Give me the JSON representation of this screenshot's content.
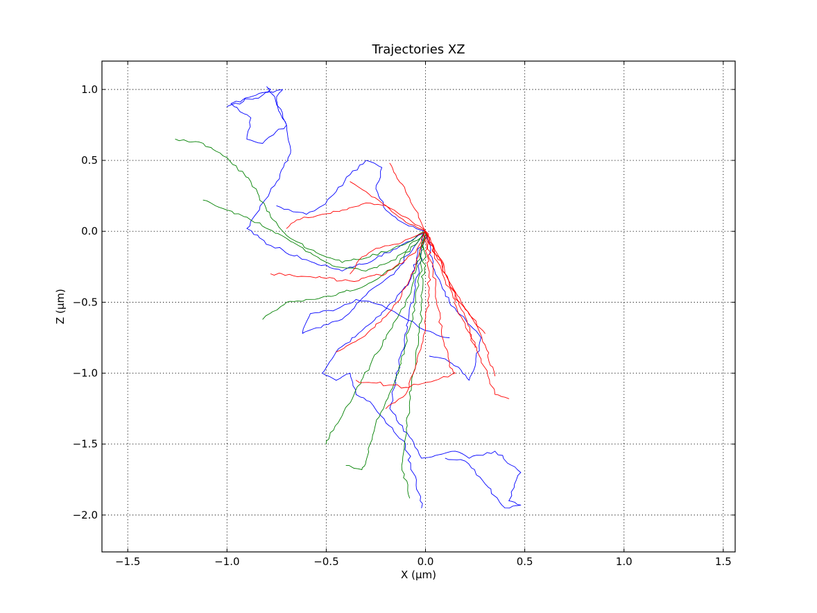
{
  "chart_data": {
    "type": "line",
    "title": "Trajectories XZ",
    "xlabel": "X (μm)",
    "ylabel": "Z (μm)",
    "xlim": [
      -1.63,
      1.56
    ],
    "ylim": [
      -2.26,
      1.2
    ],
    "xticks": [
      -1.5,
      -1.0,
      -0.5,
      0.0,
      0.5,
      1.0,
      1.5
    ],
    "xtick_labels": [
      "−1.5",
      "−1.0",
      "−0.5",
      "0.0",
      "0.5",
      "1.0",
      "1.5"
    ],
    "yticks": [
      1.0,
      0.5,
      0.0,
      -0.5,
      -1.0,
      -1.5,
      -2.0
    ],
    "ytick_labels": [
      "1.0",
      "0.5",
      "0.0",
      "−0.5",
      "−1.0",
      "−1.5",
      "−2.0"
    ],
    "grid": true,
    "colors": {
      "blue": "#0000ff",
      "green": "#008000",
      "red": "#ff0000"
    },
    "series": [
      {
        "color": "#0000ff",
        "x": [
          0.0,
          -0.18,
          -0.42,
          -0.6,
          -0.78,
          -0.9,
          -0.82,
          -0.75,
          -0.68,
          -0.7,
          -0.76,
          -0.8,
          -0.78,
          -0.98,
          -0.88,
          -0.9,
          -0.82,
          -0.7,
          -0.74,
          -0.75,
          -0.72,
          -1.0
        ],
        "y": [
          0.0,
          -0.15,
          -0.28,
          -0.2,
          -0.1,
          0.02,
          0.2,
          0.35,
          0.55,
          0.75,
          0.95,
          1.02,
          1.0,
          0.9,
          0.8,
          0.65,
          0.62,
          0.75,
          0.85,
          0.95,
          1.0,
          0.88
        ]
      },
      {
        "color": "#0000ff",
        "x": [
          0.0,
          -0.05,
          -0.12,
          -0.18,
          -0.08,
          -0.02,
          0.05,
          0.15,
          0.22,
          0.35,
          0.48,
          0.42,
          0.48,
          0.4,
          0.3,
          0.2,
          0.1
        ],
        "y": [
          0.0,
          -0.4,
          -0.85,
          -1.25,
          -1.45,
          -1.6,
          -1.58,
          -1.55,
          -1.6,
          -1.55,
          -1.7,
          -1.9,
          -1.93,
          -1.95,
          -1.78,
          -1.62,
          -1.6
        ]
      },
      {
        "color": "#0000ff",
        "x": [
          0.0,
          -0.08,
          -0.2,
          -0.32,
          -0.45,
          -0.52,
          -0.45,
          -0.38,
          -0.35,
          -0.28,
          -0.2,
          -0.1,
          -0.02
        ],
        "y": [
          0.0,
          -0.35,
          -0.55,
          -0.7,
          -0.85,
          -1.0,
          -1.05,
          -1.0,
          -1.15,
          -1.2,
          -1.35,
          -1.5,
          -1.95
        ]
      },
      {
        "color": "#0000ff",
        "x": [
          0.0,
          0.05,
          0.12,
          0.2,
          0.28,
          0.25,
          0.22,
          0.18,
          0.1,
          0.02
        ],
        "y": [
          0.0,
          -0.3,
          -0.5,
          -0.62,
          -0.75,
          -0.95,
          -1.05,
          -0.98,
          -0.9,
          -0.88
        ]
      },
      {
        "color": "#0000ff",
        "x": [
          0.0,
          -0.15,
          -0.3,
          -0.42,
          -0.55,
          -0.62,
          -0.58,
          -0.45,
          -0.35,
          -0.22,
          -0.12,
          0.0,
          0.12
        ],
        "y": [
          0.0,
          -0.28,
          -0.45,
          -0.62,
          -0.68,
          -0.72,
          -0.58,
          -0.55,
          -0.48,
          -0.52,
          -0.6,
          -0.7,
          -0.75
        ]
      },
      {
        "color": "#0000ff",
        "x": [
          0.0,
          -0.1,
          -0.2,
          -0.25,
          -0.22,
          -0.3,
          -0.38,
          -0.45,
          -0.52,
          -0.6,
          -0.75
        ],
        "y": [
          0.0,
          0.05,
          0.15,
          0.3,
          0.45,
          0.5,
          0.4,
          0.28,
          0.18,
          0.12,
          0.18
        ]
      },
      {
        "color": "#008000",
        "x": [
          0.0,
          -0.12,
          -0.28,
          -0.42,
          -0.55,
          -0.68,
          -0.78,
          -0.88,
          -1.0,
          -1.12,
          -1.26
        ],
        "y": [
          0.0,
          -0.1,
          -0.18,
          -0.22,
          -0.15,
          -0.05,
          0.1,
          0.35,
          0.52,
          0.62,
          0.65
        ]
      },
      {
        "color": "#008000",
        "x": [
          0.0,
          -0.15,
          -0.3,
          -0.45,
          -0.58,
          -0.7,
          -0.8,
          -0.9,
          -1.0,
          -1.12
        ],
        "y": [
          0.0,
          -0.2,
          -0.28,
          -0.25,
          -0.15,
          -0.05,
          0.02,
          0.1,
          0.15,
          0.22
        ]
      },
      {
        "color": "#008000",
        "x": [
          0.0,
          -0.08,
          -0.18,
          -0.28,
          -0.36,
          -0.42,
          -0.48,
          -0.5
        ],
        "y": [
          0.0,
          -0.45,
          -0.7,
          -0.95,
          -1.15,
          -1.3,
          -1.42,
          -1.5
        ]
      },
      {
        "color": "#008000",
        "x": [
          0.0,
          -0.05,
          -0.1,
          -0.15,
          -0.2,
          -0.25,
          -0.28,
          -0.3,
          -0.32,
          -0.4
        ],
        "y": [
          0.0,
          -0.5,
          -0.8,
          -1.05,
          -1.2,
          -1.35,
          -1.5,
          -1.62,
          -1.68,
          -1.65
        ]
      },
      {
        "color": "#008000",
        "x": [
          0.0,
          -0.02,
          -0.05,
          -0.08,
          -0.1,
          -0.12,
          -0.08
        ],
        "y": [
          0.0,
          -0.55,
          -0.9,
          -1.2,
          -1.45,
          -1.65,
          -1.88
        ]
      },
      {
        "color": "#008000",
        "x": [
          0.0,
          -0.15,
          -0.3,
          -0.45,
          -0.58,
          -0.7,
          -0.82
        ],
        "y": [
          0.0,
          -0.25,
          -0.38,
          -0.45,
          -0.48,
          -0.5,
          -0.62
        ]
      },
      {
        "color": "#ff0000",
        "x": [
          0.0,
          0.1,
          0.2,
          0.28,
          0.35,
          0.42
        ],
        "y": [
          0.0,
          -0.35,
          -0.65,
          -0.9,
          -1.15,
          -1.18
        ]
      },
      {
        "color": "#ff0000",
        "x": [
          0.0,
          0.1,
          0.18,
          0.25,
          0.3,
          0.35
        ],
        "y": [
          0.0,
          -0.3,
          -0.5,
          -0.65,
          -0.8,
          -1.02
        ]
      },
      {
        "color": "#ff0000",
        "x": [
          0.0,
          -0.1,
          -0.2,
          -0.3,
          -0.42,
          -0.52,
          -0.65,
          -0.7
        ],
        "y": [
          0.0,
          0.1,
          0.18,
          0.2,
          0.15,
          0.12,
          0.08,
          0.02
        ]
      },
      {
        "color": "#ff0000",
        "x": [
          0.0,
          -0.05,
          -0.1,
          -0.15,
          -0.18
        ],
        "y": [
          0.0,
          0.15,
          0.28,
          0.4,
          0.48
        ]
      },
      {
        "color": "#ff0000",
        "x": [
          0.0,
          0.1,
          0.18,
          0.25
        ],
        "y": [
          0.0,
          -0.3,
          -0.55,
          -0.82
        ]
      },
      {
        "color": "#ff0000",
        "x": [
          0.0,
          0.05,
          0.08,
          0.12,
          0.15,
          0.05,
          -0.1,
          -0.35
        ],
        "y": [
          0.0,
          -0.4,
          -0.7,
          -0.95,
          -1.0,
          -1.05,
          -1.1,
          -1.05
        ]
      },
      {
        "color": "#ff0000",
        "x": [
          0.0,
          -0.05,
          -0.2,
          -0.38,
          -0.58,
          -0.78
        ],
        "y": [
          0.0,
          -0.15,
          -0.3,
          -0.35,
          -0.32,
          -0.3
        ]
      },
      {
        "color": "#ff0000",
        "x": [
          0.0,
          -0.05,
          -0.12,
          -0.2,
          -0.32,
          -0.45
        ],
        "y": [
          0.0,
          -0.25,
          -0.45,
          -0.6,
          -0.75,
          -0.85
        ]
      },
      {
        "color": "#ff0000",
        "x": [
          0.0,
          0.02,
          0.0,
          -0.05,
          -0.1,
          -0.2
        ],
        "y": [
          0.0,
          -0.4,
          -0.7,
          -0.95,
          -1.15,
          -1.25
        ]
      },
      {
        "color": "#ff0000",
        "x": [
          0.0,
          0.08,
          0.12,
          0.2,
          0.3
        ],
        "y": [
          0.0,
          -0.2,
          -0.38,
          -0.55,
          -0.72
        ]
      },
      {
        "color": "#ff0000",
        "x": [
          0.0,
          -0.08,
          -0.15,
          -0.22,
          -0.3,
          -0.38
        ],
        "y": [
          0.0,
          0.05,
          0.12,
          0.2,
          0.28,
          0.35
        ]
      },
      {
        "color": "#ff0000",
        "x": [
          0.0,
          -0.12,
          -0.25,
          -0.32,
          -0.38
        ],
        "y": [
          0.0,
          -0.08,
          -0.12,
          -0.18,
          -0.3
        ]
      }
    ]
  }
}
